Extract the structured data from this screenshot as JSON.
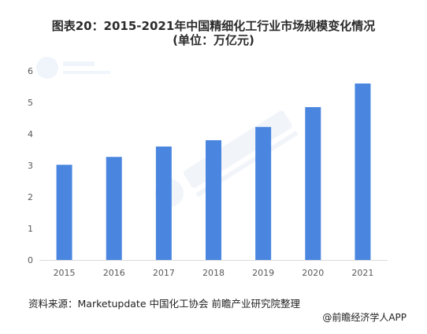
{
  "title": {
    "line1": "图表20：2015-2021年中国精细化工行业市场规模变化情况",
    "line2": "(单位：万亿元)"
  },
  "source": "资料来源：Marketupdate 中国化工协会 前瞻产业研究院整理",
  "credit": "@前瞻经济学人APP",
  "colors": {
    "bar": "#4a86e0",
    "axis": "#d9d9d9",
    "tick_text": "#595959"
  },
  "chart_data": {
    "type": "bar",
    "categories": [
      "2015",
      "2016",
      "2017",
      "2018",
      "2019",
      "2020",
      "2021"
    ],
    "values": [
      3.02,
      3.27,
      3.6,
      3.8,
      4.22,
      4.85,
      5.6
    ],
    "yticks": [
      0,
      1,
      2,
      3,
      4,
      5,
      6
    ],
    "ylim": [
      0,
      6
    ],
    "grid": false
  }
}
